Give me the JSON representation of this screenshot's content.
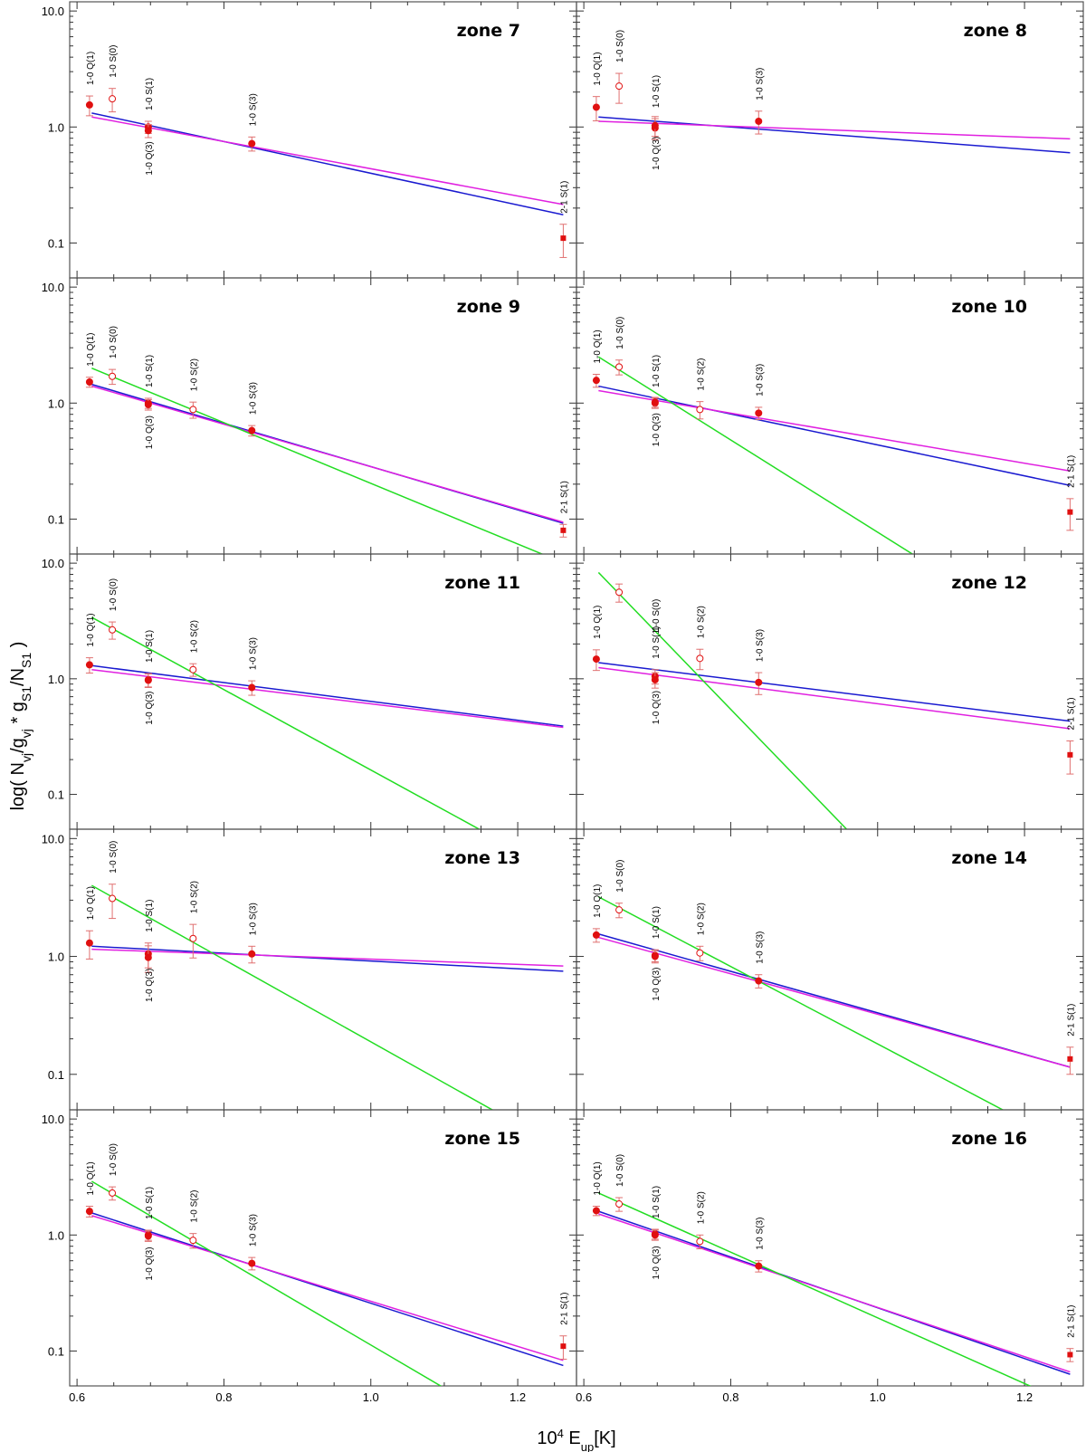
{
  "figure": {
    "ylabel": "log( N_vj/g_vj * g_S1/N_S1 )",
    "xlabel": "10^4 E_up[K]",
    "y_ticks": [
      "10.0",
      "1.0",
      "0.1"
    ],
    "x_ticks": [
      "0.6",
      "0.8",
      "1.0",
      "1.2"
    ],
    "colors": {
      "fit_blue": "#1a1ad0",
      "fit_magenta": "#e020e0",
      "fit_green": "#22dd22",
      "marker": "#e01010",
      "errorbar": "#e07070"
    }
  },
  "chart_data": [
    {
      "type": "scatter",
      "title": "zone 7",
      "xlim": [
        0.59,
        1.28
      ],
      "ylim": [
        0.05,
        12
      ],
      "points": [
        {
          "x": 0.617,
          "y": 1.55,
          "err": 0.3,
          "kind": "filled",
          "label": "1-0 Q(1)",
          "pos": "above"
        },
        {
          "x": 0.648,
          "y": 1.75,
          "err": 0.4,
          "kind": "open",
          "label": "1-0 S(0)",
          "pos": "above"
        },
        {
          "x": 0.697,
          "y": 1.0,
          "err": 0.12,
          "kind": "filled",
          "label": "1-0 S(1)",
          "pos": "above"
        },
        {
          "x": 0.697,
          "y": 0.93,
          "err": 0.12,
          "kind": "filled",
          "label": "1-0 Q(3)",
          "pos": "below"
        },
        {
          "x": 0.838,
          "y": 0.72,
          "err": 0.1,
          "kind": "filled",
          "label": "1-0 S(3)",
          "pos": "above"
        },
        {
          "x": 1.262,
          "y": 0.11,
          "err": 0.035,
          "kind": "square",
          "label": "2-1 S(1)",
          "pos": "above"
        }
      ],
      "fits": [
        {
          "color": "fit_blue",
          "x0": 0.62,
          "y0": 1.32,
          "x1": 1.262,
          "y1": 0.175
        },
        {
          "color": "fit_magenta",
          "x0": 0.62,
          "y0": 1.22,
          "x1": 1.262,
          "y1": 0.215
        }
      ]
    },
    {
      "type": "scatter",
      "title": "zone 8",
      "xlim": [
        0.59,
        1.28
      ],
      "ylim": [
        0.05,
        12
      ],
      "points": [
        {
          "x": 0.617,
          "y": 1.48,
          "err": 0.35,
          "kind": "filled",
          "label": "1-0 Q(1)",
          "pos": "above"
        },
        {
          "x": 0.648,
          "y": 2.25,
          "err": 0.65,
          "kind": "open",
          "label": "1-0 S(0)",
          "pos": "above"
        },
        {
          "x": 0.697,
          "y": 0.98,
          "err": 0.2,
          "kind": "filled",
          "label": "1-0 S(1)",
          "pos": "above"
        },
        {
          "x": 0.697,
          "y": 1.03,
          "err": 0.2,
          "kind": "filled",
          "label": "1-0 Q(3)",
          "pos": "below"
        },
        {
          "x": 0.838,
          "y": 1.12,
          "err": 0.25,
          "kind": "filled",
          "label": "1-0 S(3)",
          "pos": "above"
        }
      ],
      "fits": [
        {
          "color": "fit_blue",
          "x0": 0.62,
          "y0": 1.22,
          "x1": 1.262,
          "y1": 0.6
        },
        {
          "color": "fit_magenta",
          "x0": 0.62,
          "y0": 1.12,
          "x1": 1.262,
          "y1": 0.79
        }
      ]
    },
    {
      "type": "scatter",
      "title": "zone 9",
      "xlim": [
        0.59,
        1.28
      ],
      "ylim": [
        0.05,
        12
      ],
      "points": [
        {
          "x": 0.617,
          "y": 1.52,
          "err": 0.15,
          "kind": "filled",
          "label": "1-0 Q(1)",
          "pos": "above"
        },
        {
          "x": 0.648,
          "y": 1.7,
          "err": 0.25,
          "kind": "open",
          "label": "1-0 S(0)",
          "pos": "above"
        },
        {
          "x": 0.697,
          "y": 1.0,
          "err": 0.1,
          "kind": "filled",
          "label": "1-0 S(1)",
          "pos": "above"
        },
        {
          "x": 0.697,
          "y": 0.97,
          "err": 0.1,
          "kind": "filled",
          "label": "1-0 Q(3)",
          "pos": "below"
        },
        {
          "x": 0.758,
          "y": 0.88,
          "err": 0.14,
          "kind": "open",
          "label": "1-0 S(2)",
          "pos": "above"
        },
        {
          "x": 0.838,
          "y": 0.58,
          "err": 0.06,
          "kind": "filled",
          "label": "1-0 S(3)",
          "pos": "above"
        },
        {
          "x": 1.262,
          "y": 0.08,
          "err": 0.01,
          "kind": "square",
          "label": "2-1 S(1)",
          "pos": "above"
        }
      ],
      "fits": [
        {
          "color": "fit_blue",
          "x0": 0.62,
          "y0": 1.45,
          "x1": 1.262,
          "y1": 0.092
        },
        {
          "color": "fit_magenta",
          "x0": 0.62,
          "y0": 1.4,
          "x1": 1.262,
          "y1": 0.094
        },
        {
          "color": "fit_green",
          "x0": 0.62,
          "y0": 2.0,
          "x1": 1.262,
          "y1": 0.042
        }
      ]
    },
    {
      "type": "scatter",
      "title": "zone 10",
      "xlim": [
        0.59,
        1.28
      ],
      "ylim": [
        0.05,
        12
      ],
      "points": [
        {
          "x": 0.617,
          "y": 1.57,
          "err": 0.2,
          "kind": "filled",
          "label": "1-0 Q(1)",
          "pos": "above"
        },
        {
          "x": 0.648,
          "y": 2.05,
          "err": 0.3,
          "kind": "open",
          "label": "1-0 S(0)",
          "pos": "above"
        },
        {
          "x": 0.697,
          "y": 1.0,
          "err": 0.1,
          "kind": "filled",
          "label": "1-0 S(1)",
          "pos": "above"
        },
        {
          "x": 0.697,
          "y": 1.02,
          "err": 0.1,
          "kind": "filled",
          "label": "1-0 Q(3)",
          "pos": "below"
        },
        {
          "x": 0.758,
          "y": 0.88,
          "err": 0.15,
          "kind": "open",
          "label": "1-0 S(2)",
          "pos": "above"
        },
        {
          "x": 0.838,
          "y": 0.82,
          "err": 0.1,
          "kind": "filled",
          "label": "1-0 S(3)",
          "pos": "above"
        },
        {
          "x": 1.262,
          "y": 0.115,
          "err": 0.035,
          "kind": "square",
          "label": "2-1 S(1)",
          "pos": "above"
        }
      ],
      "fits": [
        {
          "color": "fit_blue",
          "x0": 0.62,
          "y0": 1.4,
          "x1": 1.262,
          "y1": 0.195
        },
        {
          "color": "fit_magenta",
          "x0": 0.62,
          "y0": 1.28,
          "x1": 1.262,
          "y1": 0.26
        },
        {
          "color": "fit_green",
          "x0": 0.62,
          "y0": 2.5,
          "x1": 1.262,
          "y1": 0.007
        }
      ]
    },
    {
      "type": "scatter",
      "title": "zone 11",
      "xlim": [
        0.59,
        1.28
      ],
      "ylim": [
        0.05,
        12
      ],
      "points": [
        {
          "x": 0.617,
          "y": 1.32,
          "err": 0.2,
          "kind": "filled",
          "label": "1-0 Q(1)",
          "pos": "above"
        },
        {
          "x": 0.648,
          "y": 2.65,
          "err": 0.45,
          "kind": "open",
          "label": "1-0 S(0)",
          "pos": "above"
        },
        {
          "x": 0.697,
          "y": 0.98,
          "err": 0.13,
          "kind": "filled",
          "label": "1-0 S(1)",
          "pos": "above"
        },
        {
          "x": 0.697,
          "y": 0.97,
          "err": 0.13,
          "kind": "filled",
          "label": "1-0 Q(3)",
          "pos": "below"
        },
        {
          "x": 0.758,
          "y": 1.2,
          "err": 0.15,
          "kind": "open",
          "label": "1-0 S(2)",
          "pos": "above"
        },
        {
          "x": 0.838,
          "y": 0.84,
          "err": 0.12,
          "kind": "filled",
          "label": "1-0 S(3)",
          "pos": "above"
        }
      ],
      "fits": [
        {
          "color": "fit_blue",
          "x0": 0.62,
          "y0": 1.3,
          "x1": 1.262,
          "y1": 0.39
        },
        {
          "color": "fit_magenta",
          "x0": 0.62,
          "y0": 1.2,
          "x1": 1.262,
          "y1": 0.38
        },
        {
          "color": "fit_green",
          "x0": 0.62,
          "y0": 3.4,
          "x1": 1.262,
          "y1": 0.02
        }
      ]
    },
    {
      "type": "scatter",
      "title": "zone 12",
      "xlim": [
        0.59,
        1.28
      ],
      "ylim": [
        0.05,
        12
      ],
      "points": [
        {
          "x": 0.617,
          "y": 1.48,
          "err": 0.3,
          "kind": "filled",
          "label": "1-0 Q(1)",
          "pos": "above"
        },
        {
          "x": 0.648,
          "y": 5.6,
          "err": 1.0,
          "kind": "open",
          "label": "",
          "pos": "above"
        },
        {
          "x": 0.697,
          "y": 1.05,
          "err": 0.15,
          "kind": "filled",
          "label": "1-0 S(1)",
          "pos": "above"
        },
        {
          "x": 0.697,
          "y": 0.98,
          "err": 0.15,
          "kind": "filled",
          "label": "1-0 Q(3)",
          "pos": "below"
        },
        {
          "x": 0.697,
          "y": 1.0,
          "err": 0.15,
          "kind": "none",
          "label": "1-0 S(0)",
          "pos": "above-far"
        },
        {
          "x": 0.758,
          "y": 1.5,
          "err": 0.3,
          "kind": "open",
          "label": "1-0 S(2)",
          "pos": "above"
        },
        {
          "x": 0.838,
          "y": 0.93,
          "err": 0.2,
          "kind": "filled",
          "label": "1-0 S(3)",
          "pos": "above"
        },
        {
          "x": 1.262,
          "y": 0.22,
          "err": 0.07,
          "kind": "square",
          "label": "2-1 S(1)",
          "pos": "above"
        }
      ],
      "fits": [
        {
          "color": "fit_blue",
          "x0": 0.62,
          "y0": 1.38,
          "x1": 1.262,
          "y1": 0.43
        },
        {
          "color": "fit_magenta",
          "x0": 0.62,
          "y0": 1.25,
          "x1": 1.262,
          "y1": 0.37
        },
        {
          "color": "fit_green",
          "x0": 0.62,
          "y0": 8.3,
          "x1": 1.262,
          "y1": 0.0005
        }
      ]
    },
    {
      "type": "scatter",
      "title": "zone 13",
      "xlim": [
        0.59,
        1.28
      ],
      "ylim": [
        0.05,
        12
      ],
      "points": [
        {
          "x": 0.617,
          "y": 1.3,
          "err": 0.35,
          "kind": "filled",
          "label": "1-0 Q(1)",
          "pos": "above"
        },
        {
          "x": 0.648,
          "y": 3.1,
          "err": 1.0,
          "kind": "open",
          "label": "1-0 S(0)",
          "pos": "above"
        },
        {
          "x": 0.697,
          "y": 1.05,
          "err": 0.25,
          "kind": "filled",
          "label": "1-0 S(1)",
          "pos": "above"
        },
        {
          "x": 0.697,
          "y": 0.98,
          "err": 0.25,
          "kind": "filled",
          "label": "1-0 Q(3)",
          "pos": "below"
        },
        {
          "x": 0.758,
          "y": 1.42,
          "err": 0.45,
          "kind": "open",
          "label": "1-0 S(2)",
          "pos": "above"
        },
        {
          "x": 0.838,
          "y": 1.05,
          "err": 0.17,
          "kind": "filled",
          "label": "1-0 S(3)",
          "pos": "above"
        }
      ],
      "fits": [
        {
          "color": "fit_blue",
          "x0": 0.62,
          "y0": 1.22,
          "x1": 1.262,
          "y1": 0.75
        },
        {
          "color": "fit_magenta",
          "x0": 0.62,
          "y0": 1.15,
          "x1": 1.262,
          "y1": 0.83
        },
        {
          "color": "fit_green",
          "x0": 0.62,
          "y0": 4.0,
          "x1": 1.262,
          "y1": 0.023
        }
      ]
    },
    {
      "type": "scatter",
      "title": "zone 14",
      "xlim": [
        0.59,
        1.28
      ],
      "ylim": [
        0.05,
        12
      ],
      "points": [
        {
          "x": 0.617,
          "y": 1.52,
          "err": 0.2,
          "kind": "filled",
          "label": "1-0 Q(1)",
          "pos": "above"
        },
        {
          "x": 0.648,
          "y": 2.48,
          "err": 0.35,
          "kind": "open",
          "label": "1-0 S(0)",
          "pos": "above"
        },
        {
          "x": 0.697,
          "y": 1.02,
          "err": 0.12,
          "kind": "filled",
          "label": "1-0 S(1)",
          "pos": "above"
        },
        {
          "x": 0.697,
          "y": 1.0,
          "err": 0.12,
          "kind": "filled",
          "label": "1-0 Q(3)",
          "pos": "below"
        },
        {
          "x": 0.758,
          "y": 1.07,
          "err": 0.15,
          "kind": "open",
          "label": "1-0 S(2)",
          "pos": "above"
        },
        {
          "x": 0.838,
          "y": 0.62,
          "err": 0.08,
          "kind": "filled",
          "label": "1-0 S(3)",
          "pos": "above"
        },
        {
          "x": 1.262,
          "y": 0.135,
          "err": 0.035,
          "kind": "square",
          "label": "2-1 S(1)",
          "pos": "above"
        }
      ],
      "fits": [
        {
          "color": "fit_blue",
          "x0": 0.62,
          "y0": 1.55,
          "x1": 1.262,
          "y1": 0.115
        },
        {
          "color": "fit_magenta",
          "x0": 0.62,
          "y0": 1.45,
          "x1": 1.262,
          "y1": 0.115
        },
        {
          "color": "fit_green",
          "x0": 0.62,
          "y0": 3.2,
          "x1": 1.262,
          "y1": 0.025
        }
      ]
    },
    {
      "type": "scatter",
      "title": "zone 15",
      "xlim": [
        0.59,
        1.28
      ],
      "ylim": [
        0.05,
        12
      ],
      "points": [
        {
          "x": 0.617,
          "y": 1.6,
          "err": 0.17,
          "kind": "filled",
          "label": "1-0 Q(1)",
          "pos": "above"
        },
        {
          "x": 0.648,
          "y": 2.3,
          "err": 0.3,
          "kind": "open",
          "label": "1-0 S(0)",
          "pos": "above"
        },
        {
          "x": 0.697,
          "y": 1.0,
          "err": 0.1,
          "kind": "filled",
          "label": "1-0 S(1)",
          "pos": "above"
        },
        {
          "x": 0.697,
          "y": 0.98,
          "err": 0.1,
          "kind": "filled",
          "label": "1-0 Q(3)",
          "pos": "below"
        },
        {
          "x": 0.758,
          "y": 0.9,
          "err": 0.13,
          "kind": "open",
          "label": "1-0 S(2)",
          "pos": "above"
        },
        {
          "x": 0.838,
          "y": 0.57,
          "err": 0.07,
          "kind": "filled",
          "label": "1-0 S(3)",
          "pos": "above"
        },
        {
          "x": 1.262,
          "y": 0.11,
          "err": 0.025,
          "kind": "square",
          "label": "2-1 S(1)",
          "pos": "above"
        }
      ],
      "fits": [
        {
          "color": "fit_blue",
          "x0": 0.62,
          "y0": 1.55,
          "x1": 1.262,
          "y1": 0.075
        },
        {
          "color": "fit_magenta",
          "x0": 0.62,
          "y0": 1.47,
          "x1": 1.262,
          "y1": 0.083
        },
        {
          "color": "fit_green",
          "x0": 0.62,
          "y0": 2.9,
          "x1": 1.262,
          "y1": 0.012
        }
      ]
    },
    {
      "type": "scatter",
      "title": "zone 16",
      "xlim": [
        0.59,
        1.28
      ],
      "ylim": [
        0.05,
        12
      ],
      "points": [
        {
          "x": 0.617,
          "y": 1.62,
          "err": 0.15,
          "kind": "filled",
          "label": "1-0 Q(1)",
          "pos": "above"
        },
        {
          "x": 0.648,
          "y": 1.85,
          "err": 0.25,
          "kind": "open",
          "label": "1-0 S(0)",
          "pos": "above"
        },
        {
          "x": 0.697,
          "y": 1.02,
          "err": 0.1,
          "kind": "filled",
          "label": "1-0 S(1)",
          "pos": "above"
        },
        {
          "x": 0.697,
          "y": 1.0,
          "err": 0.1,
          "kind": "filled",
          "label": "1-0 Q(3)",
          "pos": "below"
        },
        {
          "x": 0.758,
          "y": 0.88,
          "err": 0.12,
          "kind": "open",
          "label": "1-0 S(2)",
          "pos": "above"
        },
        {
          "x": 0.838,
          "y": 0.54,
          "err": 0.06,
          "kind": "filled",
          "label": "1-0 S(3)",
          "pos": "above"
        },
        {
          "x": 1.262,
          "y": 0.093,
          "err": 0.012,
          "kind": "square",
          "label": "2-1 S(1)",
          "pos": "above"
        }
      ],
      "fits": [
        {
          "color": "fit_blue",
          "x0": 0.62,
          "y0": 1.6,
          "x1": 1.262,
          "y1": 0.063
        },
        {
          "color": "fit_magenta",
          "x0": 0.62,
          "y0": 1.52,
          "x1": 1.262,
          "y1": 0.066
        },
        {
          "color": "fit_green",
          "x0": 0.62,
          "y0": 2.3,
          "x1": 1.262,
          "y1": 0.035
        }
      ]
    }
  ]
}
